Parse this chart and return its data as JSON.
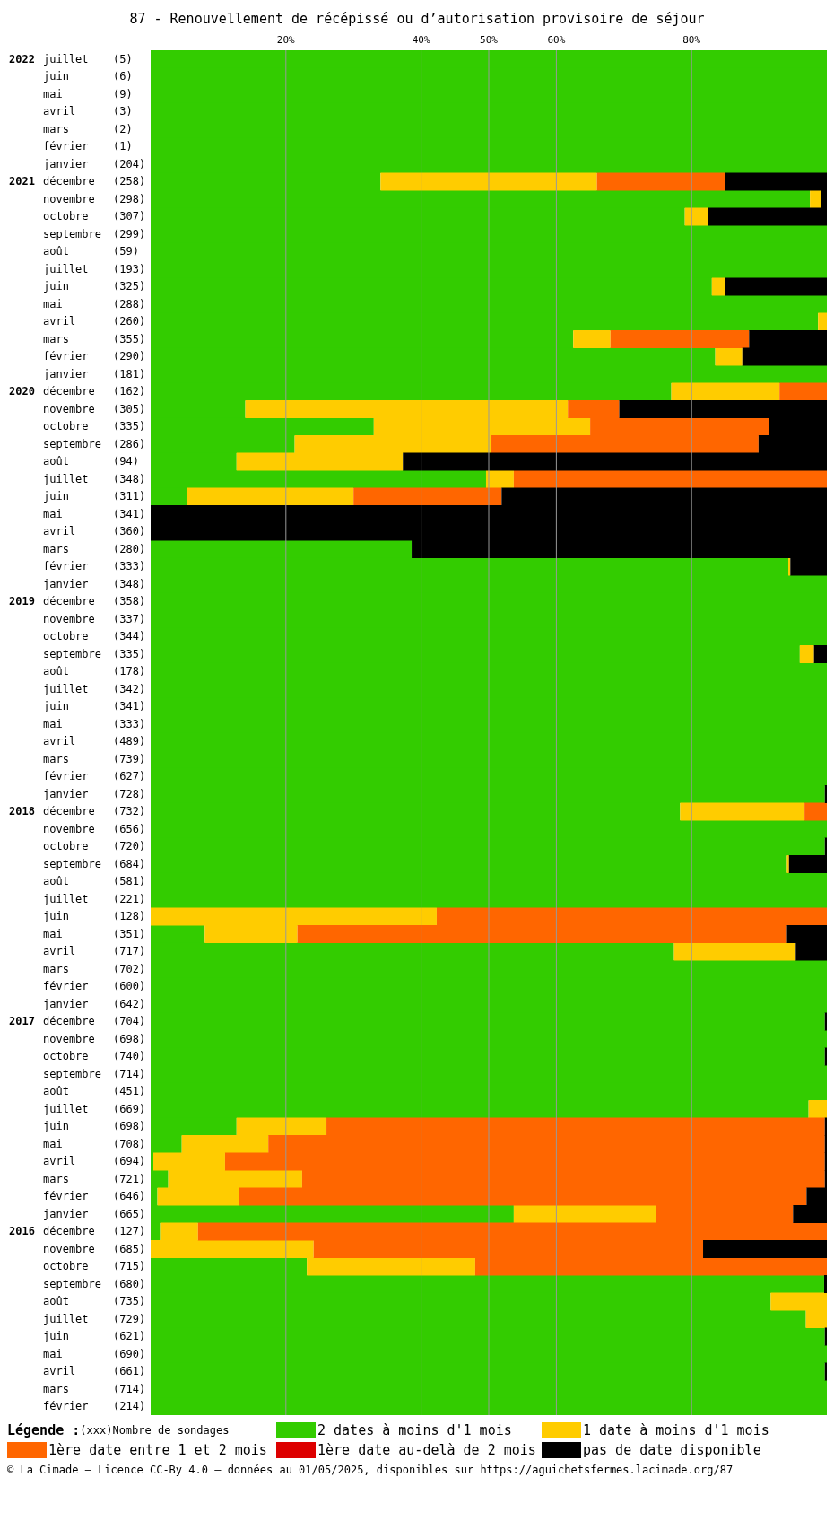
{
  "chart_data": {
    "type": "bar",
    "orientation": "horizontal",
    "stacked": true,
    "title": "87 - Renouvellement de récépissé ou d’autorisation provisoire de séjour",
    "categories": [
      "2022 juillet (5)",
      "juin (6)",
      "mai (9)",
      "avril (3)",
      "mars (2)",
      "février (1)",
      "janvier (204)",
      "2021 décembre (258)",
      "novembre (298)",
      "octobre (307)",
      "septembre (299)",
      "août (59)",
      "juillet (193)",
      "juin (325)",
      "mai (288)",
      "avril (260)",
      "mars (355)",
      "février (290)",
      "janvier (181)",
      "2020 décembre (162)",
      "novembre (305)",
      "octobre (335)",
      "septembre (286)",
      "août (94)",
      "juillet (348)",
      "juin (311)",
      "mai (341)",
      "avril (360)",
      "mars (280)",
      "février (333)",
      "janvier (348)",
      "2019 décembre (358)",
      "novembre (337)",
      "octobre (344)",
      "septembre (335)",
      "août (178)",
      "juillet (342)",
      "juin (341)",
      "mai (333)",
      "avril (489)",
      "mars (739)",
      "février (627)",
      "janvier (728)",
      "2018 décembre (732)",
      "novembre (656)",
      "octobre (720)",
      "septembre (684)",
      "août (581)",
      "juillet (221)",
      "juin (128)",
      "mai (351)",
      "avril (717)",
      "mars (702)",
      "février (600)",
      "janvier (642)",
      "2017 décembre (704)",
      "novembre (698)",
      "octobre (740)",
      "septembre (714)",
      "août (451)",
      "juillet (669)",
      "juin (698)",
      "mai (708)",
      "avril (694)",
      "mars (721)",
      "février (646)",
      "janvier (665)",
      "2016 décembre (127)",
      "novembre (685)",
      "octobre (715)",
      "septembre (680)",
      "août (735)",
      "juillet (729)",
      "juin (621)",
      "mai (690)",
      "avril (661)",
      "mars (714)",
      "février (214)"
    ],
    "series": [
      {
        "name": "2 dates à moins d'1 mois",
        "color": "#33cc00",
        "values": [
          100,
          100,
          100,
          100,
          100,
          100,
          100,
          34,
          97.5,
          79,
          100,
          100,
          100,
          83,
          100,
          98.7,
          62.5,
          83.5,
          100,
          77,
          14,
          33,
          21.3,
          12.7,
          49.6,
          5.4,
          0,
          0,
          38.6,
          94.3,
          100,
          100,
          100,
          100,
          96,
          100,
          100,
          100,
          100,
          100,
          100,
          100,
          99.7,
          78.3,
          100,
          99.7,
          94.1,
          100,
          100,
          0,
          8,
          77.4,
          100,
          100,
          100,
          99.7,
          100,
          99.7,
          100,
          100,
          97.3,
          12.7,
          4.6,
          0.4,
          2.6,
          1,
          53.7,
          1.4,
          0,
          23.1,
          99.6,
          91.7,
          96.9,
          99.7,
          100,
          99.7,
          100,
          100
        ]
      },
      {
        "name": "1 date à moins d'1 mois",
        "color": "#ffcc00",
        "values": [
          0,
          0,
          0,
          0,
          0,
          0,
          0,
          32,
          1.7,
          3.4,
          0,
          0,
          0,
          2,
          0,
          1.3,
          5.5,
          4,
          0,
          16,
          47.7,
          32,
          29.1,
          24.6,
          4.1,
          24.6,
          0,
          0,
          0,
          0.3,
          0,
          0,
          0,
          0,
          2.1,
          0,
          0,
          0,
          0,
          0,
          0,
          0,
          0,
          18.4,
          0,
          0,
          0.3,
          0,
          0,
          42.3,
          13.7,
          18,
          0,
          0,
          0,
          0,
          0,
          0,
          0,
          0,
          2.7,
          13.3,
          12.8,
          10.6,
          19.8,
          12.1,
          21,
          5.6,
          24.1,
          24.9,
          0,
          8.3,
          3.1,
          0,
          0,
          0,
          0,
          0
        ]
      },
      {
        "name": "1ère date entre 1 et 2 mois",
        "color": "#ff6600",
        "values": [
          0,
          0,
          0,
          0,
          0,
          0,
          0,
          19,
          0,
          0,
          0,
          0,
          0,
          0,
          0,
          0,
          20.5,
          0,
          0,
          7,
          7.6,
          26.5,
          39.5,
          0,
          46.3,
          21.9,
          0,
          0,
          0,
          0,
          0,
          0,
          0,
          0,
          0,
          0,
          0,
          0,
          0,
          0,
          0,
          0,
          0,
          3.3,
          0,
          0,
          0,
          0,
          0,
          57.7,
          72.4,
          0,
          0,
          0,
          0,
          0,
          0,
          0,
          0,
          0,
          0,
          73.7,
          82.3,
          88.7,
          77.3,
          83.9,
          20.3,
          93,
          57.6,
          52,
          0,
          0,
          0,
          0,
          0,
          0,
          0,
          0
        ]
      },
      {
        "name": "1ère date au-delà de 2 mois",
        "color": "#dd0000",
        "values": [
          0,
          0,
          0,
          0,
          0,
          0,
          0,
          0,
          0,
          0,
          0,
          0,
          0,
          0,
          0,
          0,
          0,
          0,
          0,
          0,
          0,
          0,
          0,
          0,
          0,
          0,
          0,
          0,
          0,
          0,
          0,
          0,
          0,
          0,
          0,
          0,
          0,
          0,
          0,
          0,
          0,
          0,
          0,
          0,
          0,
          0,
          0,
          0,
          0,
          0,
          0,
          0,
          0,
          0,
          0,
          0,
          0,
          0,
          0,
          0,
          0,
          0,
          0,
          0,
          0,
          0,
          0,
          0,
          0,
          0,
          0,
          0,
          0,
          0,
          0,
          0,
          0,
          0
        ]
      },
      {
        "name": "pas de date disponible",
        "color": "#000000",
        "values": [
          0,
          0,
          0,
          0,
          0,
          0,
          0,
          15,
          0.8,
          17.6,
          0,
          0,
          0,
          15,
          0,
          0,
          11.5,
          12.5,
          0,
          0,
          30.7,
          8.5,
          10.1,
          62.7,
          0,
          48.1,
          100,
          100,
          61.4,
          5.4,
          0,
          0,
          0,
          0,
          1.9,
          0,
          0,
          0,
          0,
          0,
          0,
          0,
          0.3,
          0,
          0,
          0.3,
          5.6,
          0,
          0,
          0,
          5.9,
          4.6,
          0,
          0,
          0,
          0.3,
          0,
          0.3,
          0,
          0,
          0,
          0.3,
          0.3,
          0.3,
          0.3,
          3,
          5,
          0,
          18.3,
          0,
          0.4,
          0,
          0,
          0.3,
          0,
          0.3,
          0,
          0
        ]
      }
    ],
    "xlim": [
      0,
      100
    ],
    "xticks": [
      {
        "value": 20,
        "label": "20%"
      },
      {
        "value": 40,
        "label": "40%"
      },
      {
        "value": 50,
        "label": "50%"
      },
      {
        "value": 60,
        "label": "60%"
      },
      {
        "value": 80,
        "label": "80%"
      }
    ],
    "grid": "x",
    "legend": "bottom",
    "legend_title": "Légende :",
    "annotations": [
      "(xxx)Nombre de sondages",
      "© La Cimade — Licence CC-By 4.0 — données au 01/05/2025, disponibles sur https://aguichetsfermes.lacimade.org/87"
    ]
  }
}
